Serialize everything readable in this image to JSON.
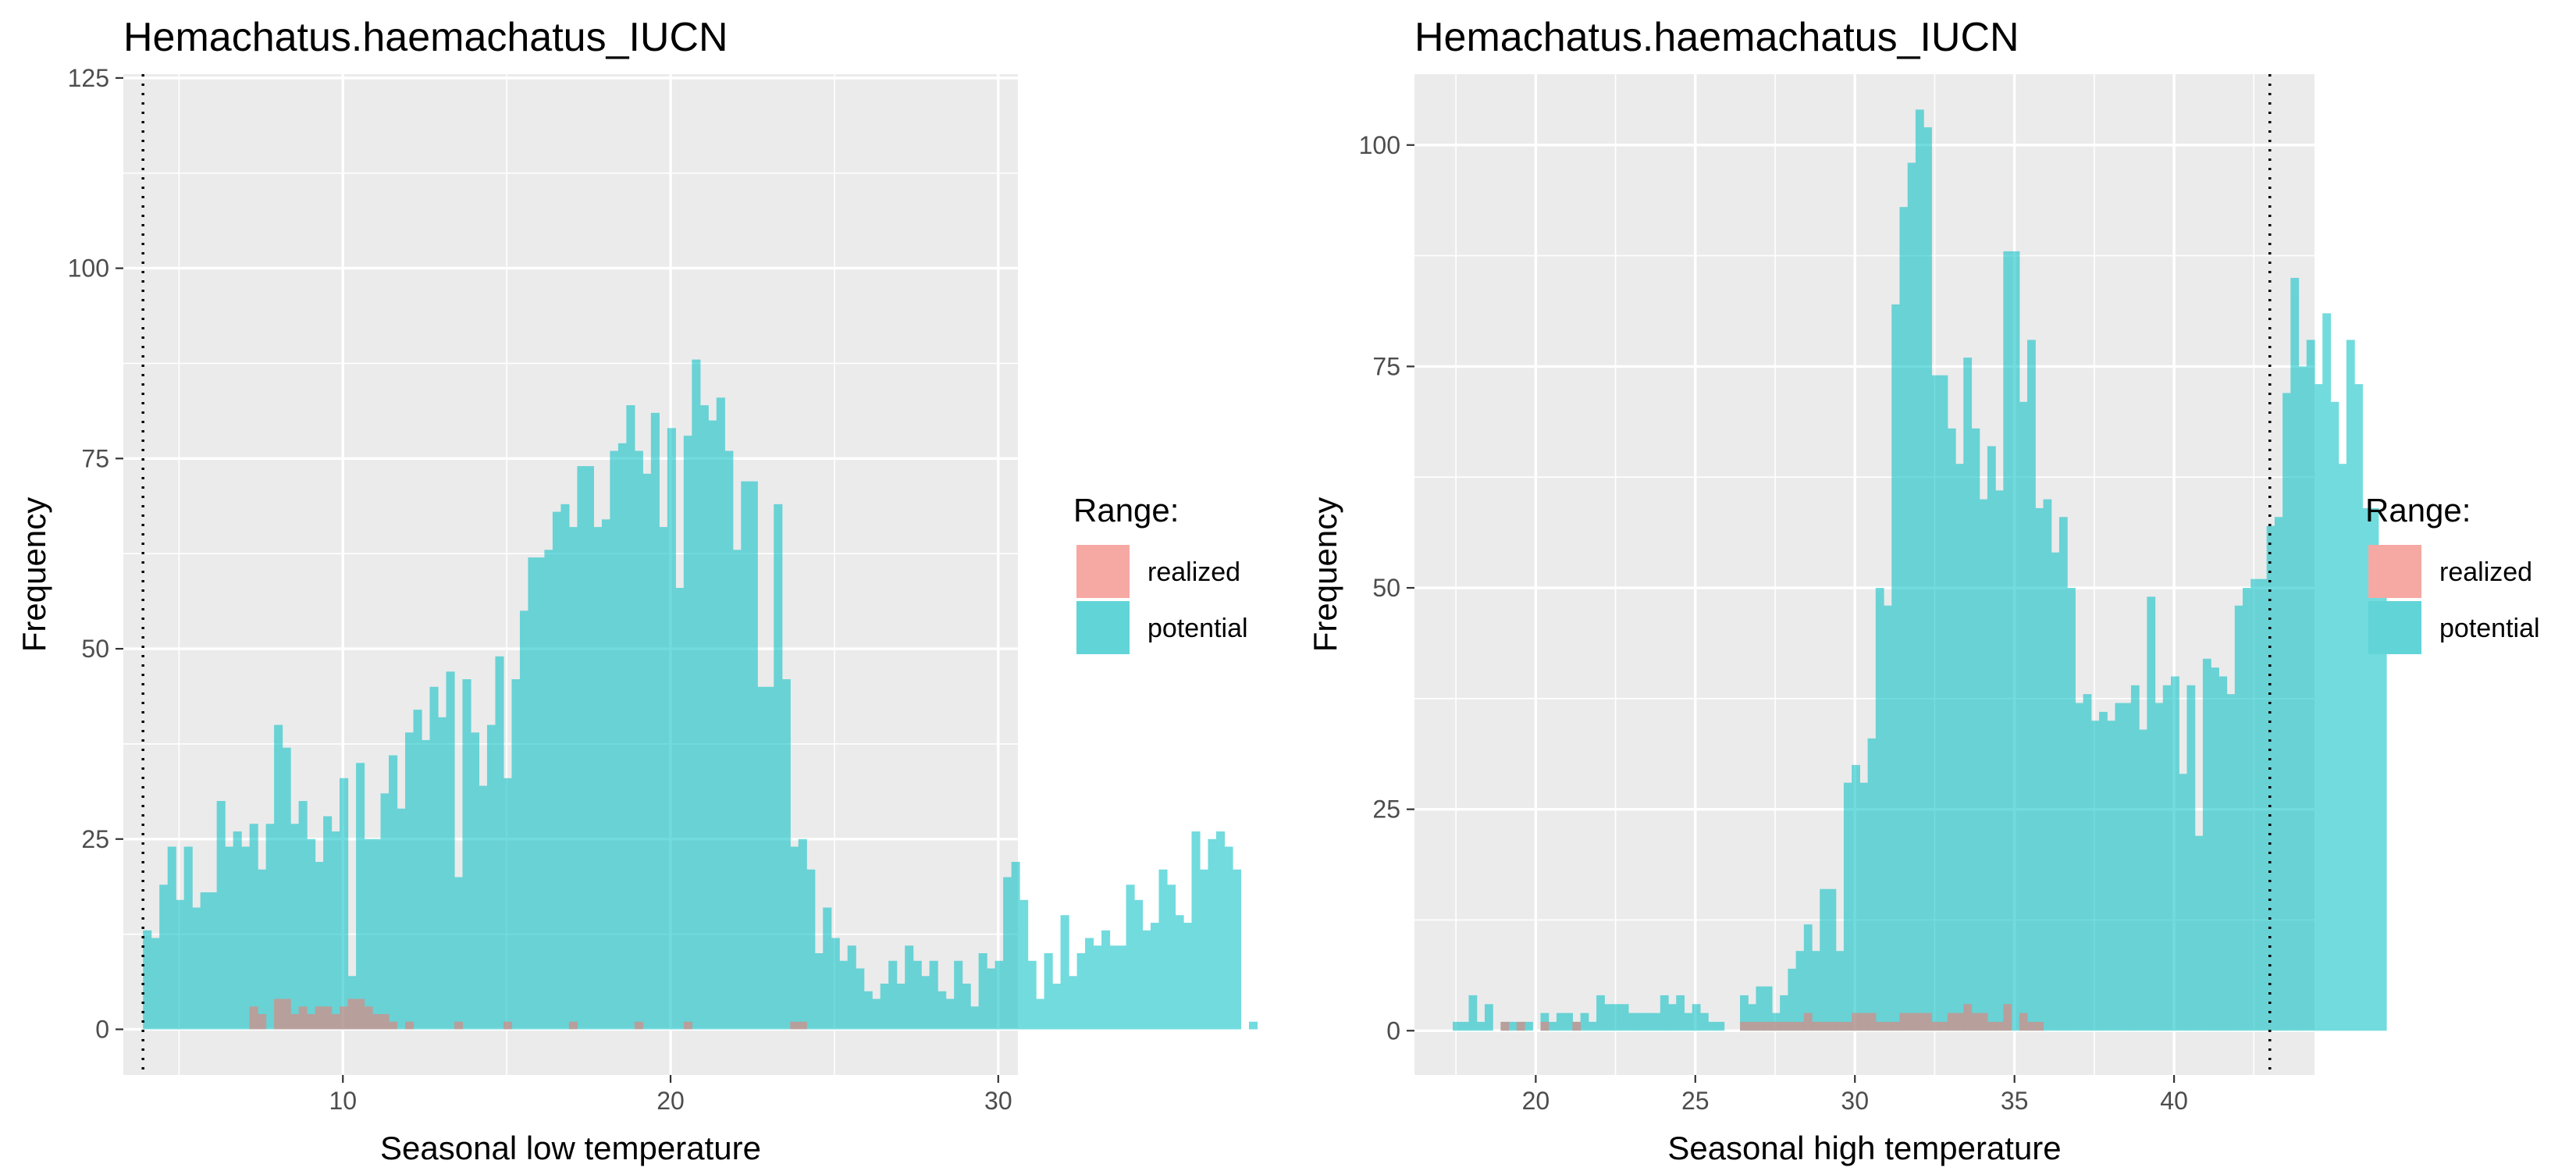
{
  "chart_data": [
    {
      "type": "histogram",
      "title": "Hemachatus.haemachatus_IUCN",
      "xlabel": "Seasonal low temperature",
      "ylabel": "Frequency",
      "xlim": [
        3.3,
        30.6
      ],
      "ylim": [
        -6,
        125.5
      ],
      "x_ticks": [
        10,
        20,
        30
      ],
      "y_ticks": [
        0,
        25,
        50,
        75,
        100,
        125
      ],
      "bin_start": 3.9,
      "bin_width": 0.25,
      "grid": true,
      "reference_line_x": 3.9,
      "legend": {
        "title": "Range:",
        "position": "right"
      },
      "series": [
        {
          "name": "potential",
          "color": "#00BFC4",
          "values": [
            13,
            12,
            19,
            24,
            17,
            24,
            16,
            18,
            18,
            30,
            24,
            26,
            24,
            27,
            21,
            27,
            40,
            37,
            27,
            30,
            25,
            22,
            28,
            26,
            33,
            7,
            35,
            25,
            25,
            31,
            36,
            29,
            39,
            42,
            38,
            45,
            41,
            47,
            20,
            46,
            39,
            32,
            40,
            49,
            33,
            46,
            55,
            62,
            62,
            63,
            68,
            69,
            66,
            74,
            74,
            66,
            67,
            76,
            77,
            82,
            76,
            73,
            81,
            66,
            79,
            58,
            78,
            88,
            82,
            80,
            83,
            76,
            63,
            72,
            72,
            45,
            45,
            69,
            46,
            24,
            25,
            21,
            10,
            16,
            12,
            9,
            11,
            8,
            5,
            4,
            6,
            9,
            6,
            11,
            9,
            7,
            9,
            5,
            4,
            9,
            6,
            3,
            10,
            8,
            9,
            20,
            22,
            17,
            9,
            4,
            10,
            6,
            15,
            7,
            10,
            12,
            11,
            13,
            11,
            11,
            19,
            17,
            13,
            14,
            21,
            19,
            15,
            14,
            26,
            21,
            25,
            26,
            24,
            21,
            0,
            1
          ],
          "overrides": [
            {
              "bin": 117,
              "value": 20
            },
            {
              "bin": 118,
              "value": 22
            }
          ]
        },
        {
          "name": "realized",
          "color": "#F8766D",
          "values": [
            0,
            0,
            0,
            0,
            0,
            0,
            0,
            0,
            0,
            0,
            0,
            0,
            0,
            3,
            2,
            0,
            4,
            4,
            2,
            3,
            2,
            3,
            3,
            2,
            3,
            4,
            4,
            3,
            2,
            2,
            1,
            0,
            1,
            0,
            0,
            0,
            0,
            0,
            1,
            0,
            0,
            0,
            0,
            0,
            1,
            0,
            0,
            0,
            0,
            0,
            0,
            0,
            1,
            0,
            0,
            0,
            0,
            0,
            0,
            0,
            1,
            0,
            0,
            0,
            0,
            0,
            1,
            0,
            0,
            0,
            0,
            0,
            0,
            0,
            0,
            0,
            0,
            0,
            0,
            1,
            1,
            0,
            0,
            0,
            0,
            0,
            0,
            0,
            0,
            0,
            0,
            0,
            0,
            0,
            0,
            0,
            0,
            0,
            0,
            0,
            0,
            0,
            0,
            0,
            0,
            0,
            0,
            0,
            0,
            0,
            0,
            0,
            0,
            0,
            0,
            0,
            0,
            0,
            0,
            0,
            0,
            0,
            0,
            0,
            0,
            0,
            0,
            0,
            0,
            0,
            0,
            0,
            0,
            0,
            0,
            0
          ]
        }
      ]
    },
    {
      "type": "histogram",
      "title": "Hemachatus.haemachatus_IUCN",
      "xlabel": "Seasonal high temperature",
      "ylabel": "Frequency",
      "xlim": [
        16.2,
        44.4
      ],
      "ylim": [
        -5,
        108
      ],
      "x_ticks": [
        20,
        25,
        30,
        35,
        40
      ],
      "y_ticks": [
        0,
        25,
        50,
        75,
        100
      ],
      "bin_start": 17.4,
      "bin_width": 0.25,
      "grid": true,
      "reference_line_x": 43,
      "legend": {
        "title": "Range:",
        "position": "right"
      },
      "series": [
        {
          "name": "potential",
          "color": "#00BFC4",
          "values": [
            1,
            1,
            4,
            1,
            3,
            0,
            1,
            1,
            1,
            1,
            0,
            2,
            1,
            2,
            2,
            1,
            2,
            1,
            4,
            3,
            3,
            3,
            2,
            2,
            2,
            2,
            4,
            3,
            4,
            2,
            3,
            2,
            1,
            1,
            0,
            0,
            4,
            3,
            5,
            5,
            2,
            4,
            7,
            9,
            12,
            9,
            16,
            16,
            9,
            28,
            30,
            28,
            33,
            50,
            48,
            82,
            93,
            98,
            104,
            102,
            74,
            74,
            68,
            64,
            76,
            68,
            60,
            66,
            61,
            88,
            88,
            71,
            78,
            59,
            60,
            54,
            58,
            50,
            37,
            38,
            35,
            36,
            35,
            37,
            37,
            39,
            34,
            49,
            37,
            39,
            40,
            29,
            39,
            22,
            42,
            41,
            40,
            38,
            48,
            50,
            51,
            51,
            57,
            58,
            72,
            85,
            75,
            78,
            73,
            81,
            71,
            64,
            78,
            73,
            59,
            59,
            53
          ]
        },
        {
          "name": "realized",
          "color": "#F8766D",
          "values": [
            0,
            0,
            0,
            0,
            0,
            0,
            1,
            0,
            1,
            0,
            0,
            1,
            0,
            0,
            0,
            1,
            0,
            0,
            0,
            0,
            0,
            0,
            0,
            0,
            0,
            0,
            0,
            0,
            0,
            0,
            0,
            0,
            0,
            0,
            0,
            0,
            1,
            1,
            1,
            1,
            1,
            1,
            1,
            1,
            2,
            1,
            1,
            1,
            1,
            1,
            2,
            2,
            2,
            1,
            1,
            1,
            2,
            2,
            2,
            2,
            1,
            1,
            2,
            2,
            3,
            2,
            2,
            1,
            1,
            3,
            0,
            2,
            1,
            1,
            0,
            0,
            0,
            0,
            0,
            0,
            0,
            0,
            0,
            0,
            0,
            0,
            0,
            0,
            0,
            0,
            0,
            0,
            0,
            0,
            0,
            0,
            0,
            0,
            0,
            0,
            0,
            0,
            0,
            0,
            0,
            0,
            0,
            0,
            0,
            0,
            0,
            0,
            0,
            0,
            0,
            0,
            0
          ]
        }
      ]
    }
  ]
}
